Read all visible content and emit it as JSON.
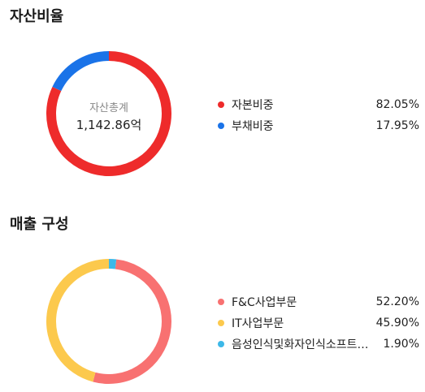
{
  "chart_data": [
    {
      "type": "pie",
      "title": "자산비율",
      "center_caption": "자산총계",
      "center_value": "1,142.86억",
      "start_angle_deg": 0,
      "categories": [
        "자본비중",
        "부채비중"
      ],
      "values": [
        82.05,
        17.95
      ],
      "value_labels": [
        "82.05%",
        "17.95%"
      ],
      "colors": [
        "#ee2b2b",
        "#1a73e8"
      ],
      "draw_order": [
        1,
        0
      ],
      "legend": "right"
    },
    {
      "type": "pie",
      "title": "매출 구성",
      "start_angle_deg": 6.84,
      "categories": [
        "F&C사업부문",
        "IT사업부문",
        "음성인식및화자인식소프트…"
      ],
      "values": [
        52.2,
        45.9,
        1.9
      ],
      "value_labels": [
        "52.20%",
        "45.90%",
        "1.90%"
      ],
      "colors": [
        "#f87171",
        "#fcc94d",
        "#3db8e8"
      ],
      "draw_order": [
        0,
        1,
        2
      ],
      "legend": "right"
    }
  ]
}
